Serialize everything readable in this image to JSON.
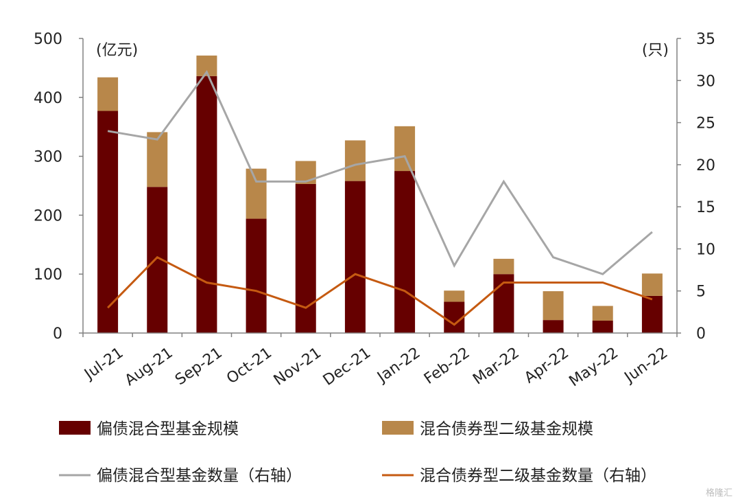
{
  "chart_data": {
    "type": "bar",
    "categories": [
      "Jul-21",
      "Aug-21",
      "Sep-21",
      "Oct-21",
      "Nov-21",
      "Dec-21",
      "Jan-22",
      "Feb-22",
      "Mar-22",
      "Apr-22",
      "May-22",
      "Jun-22"
    ],
    "left_axis": {
      "unit": "(亿元)",
      "ylim": [
        0,
        500
      ],
      "ticks": [
        0,
        100,
        200,
        300,
        400,
        500
      ]
    },
    "right_axis": {
      "unit": "(只)",
      "ylim": [
        0,
        35
      ],
      "ticks": [
        0,
        5,
        10,
        15,
        20,
        25,
        30,
        35
      ]
    },
    "bar_series": [
      {
        "name": "偏债混合型基金规模",
        "color": "#660000",
        "axis": "left",
        "values": [
          377,
          248,
          436,
          194,
          253,
          258,
          275,
          53,
          100,
          22,
          21,
          63
        ]
      },
      {
        "name": "混合债券型二级基金规模",
        "color": "#b8874a",
        "axis": "left",
        "values": [
          57,
          93,
          35,
          85,
          39,
          69,
          76,
          19,
          26,
          49,
          25,
          38
        ]
      }
    ],
    "line_series": [
      {
        "name": "偏债混合型基金数量（右轴）",
        "color": "#a6a6a6",
        "axis": "right",
        "values": [
          24,
          23,
          31,
          18,
          18,
          20,
          21,
          8,
          18,
          9,
          7,
          12
        ]
      },
      {
        "name": "混合债券型二级基金数量（右轴）",
        "color": "#c55a11",
        "axis": "right",
        "values": [
          3,
          9,
          6,
          5,
          3,
          7,
          5,
          1,
          6,
          6,
          6,
          4
        ]
      }
    ],
    "stacked": true,
    "grid": false,
    "legend_position": "bottom"
  },
  "watermark": "格隆汇"
}
